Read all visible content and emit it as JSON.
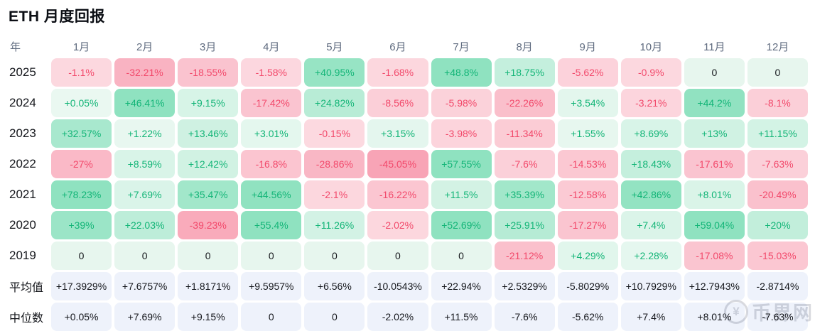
{
  "title": "ETH 月度回报",
  "watermark": {
    "text": "币界网",
    "icon_symbol": "¥"
  },
  "chart_data": {
    "type": "heatmap",
    "title": "ETH 月度回报",
    "row_axis_label": "年",
    "columns": [
      "1月",
      "2月",
      "3月",
      "4月",
      "5月",
      "6月",
      "7月",
      "8月",
      "9月",
      "10月",
      "11月",
      "12月"
    ],
    "rows": [
      {
        "label": "2025",
        "kind": "year",
        "values": [
          "-1.1%",
          "-32.21%",
          "-18.55%",
          "-1.58%",
          "+40.95%",
          "-1.68%",
          "+48.8%",
          "+18.75%",
          "-5.62%",
          "-0.9%",
          "0",
          "0"
        ]
      },
      {
        "label": "2024",
        "kind": "year",
        "values": [
          "+0.05%",
          "+46.41%",
          "+9.15%",
          "-17.42%",
          "+24.82%",
          "-8.56%",
          "-5.98%",
          "-22.26%",
          "+3.54%",
          "-3.21%",
          "+44.2%",
          "-8.1%"
        ]
      },
      {
        "label": "2023",
        "kind": "year",
        "values": [
          "+32.57%",
          "+1.22%",
          "+13.46%",
          "+3.01%",
          "-0.15%",
          "+3.15%",
          "-3.98%",
          "-11.34%",
          "+1.55%",
          "+8.69%",
          "+13%",
          "+11.15%"
        ]
      },
      {
        "label": "2022",
        "kind": "year",
        "values": [
          "-27%",
          "+8.59%",
          "+12.42%",
          "-16.8%",
          "-28.86%",
          "-45.05%",
          "+57.55%",
          "-7.6%",
          "-14.53%",
          "+18.43%",
          "-17.61%",
          "-7.63%"
        ]
      },
      {
        "label": "2021",
        "kind": "year",
        "values": [
          "+78.23%",
          "+7.69%",
          "+35.47%",
          "+44.56%",
          "-2.1%",
          "-16.22%",
          "+11.5%",
          "+35.39%",
          "-12.58%",
          "+42.86%",
          "+8.01%",
          "-20.49%"
        ]
      },
      {
        "label": "2020",
        "kind": "year",
        "values": [
          "+39%",
          "+22.03%",
          "-39.23%",
          "+55.4%",
          "+11.26%",
          "-2.02%",
          "+52.69%",
          "+25.91%",
          "-17.27%",
          "+7.4%",
          "+59.04%",
          "+20%"
        ]
      },
      {
        "label": "2019",
        "kind": "year",
        "values": [
          "0",
          "0",
          "0",
          "0",
          "0",
          "0",
          "0",
          "-21.12%",
          "+4.29%",
          "+2.28%",
          "-17.08%",
          "-15.03%"
        ]
      },
      {
        "label": "平均值",
        "kind": "stat",
        "values": [
          "+17.3929%",
          "+7.6757%",
          "+1.8171%",
          "+9.5957%",
          "+6.56%",
          "-10.0543%",
          "+22.94%",
          "+2.5329%",
          "-5.8029%",
          "+10.7929%",
          "+12.7943%",
          "-2.8714%"
        ]
      },
      {
        "label": "中位数",
        "kind": "stat",
        "values": [
          "+0.05%",
          "+7.69%",
          "+9.15%",
          "0",
          "0",
          "-2.02%",
          "+11.5%",
          "-7.6%",
          "-5.62%",
          "+7.4%",
          "+8.01%",
          "-7.63%"
        ]
      }
    ],
    "colors": {
      "positive_text": "#13b577",
      "negative_text": "#f2496b",
      "zero_text": "#15171c",
      "zero_bg": "#e7f6ee",
      "positive_weak_bg": "#eaf8f1",
      "positive_strong_bg": "#8fe2c0",
      "negative_weak_bg": "#fcd9e0",
      "negative_strong_bg": "#f8a4b6",
      "stat_bg": "#eef2fb",
      "stat_text": "#15171c",
      "header_text": "#5f6b7f",
      "color_scale_max_abs": 45
    },
    "legend": "none",
    "grid": "off"
  }
}
